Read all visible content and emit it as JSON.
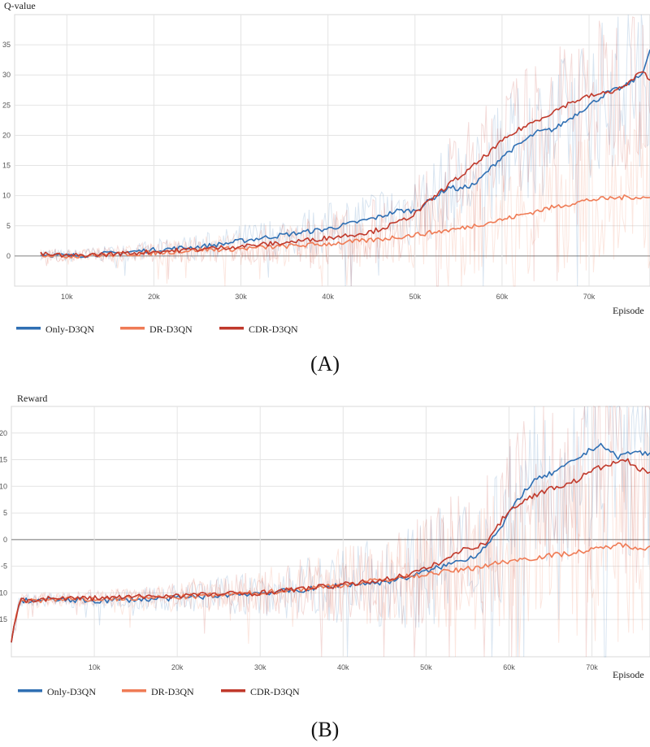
{
  "colors": {
    "only": "#2f6fb3",
    "dr": "#ef7b55",
    "cdr": "#c0392b",
    "grid": "#e4e4e4",
    "zero": "#9a9a9a"
  },
  "chart_data": [
    {
      "type": "line",
      "caption": "(A)",
      "ylabel": "Q-value",
      "xlabel": "Episode",
      "xlim": [
        4000,
        77000
      ],
      "ylim": [
        -5,
        40
      ],
      "yticks": [
        0,
        5,
        10,
        15,
        20,
        25,
        30,
        35
      ],
      "yticklabels": [
        "0",
        "5",
        "10",
        "15",
        "20",
        "25",
        "30",
        "35"
      ],
      "xticks": [
        10000,
        20000,
        30000,
        40000,
        50000,
        60000,
        70000
      ],
      "xticklabels": [
        "10k",
        "20k",
        "30k",
        "40k",
        "50k",
        "60k",
        "70k"
      ],
      "series": [
        {
          "name": "Only-D3QN",
          "key": "only",
          "x": [
            7000,
            10000,
            15000,
            20000,
            25000,
            28000,
            30000,
            35000,
            40000,
            43000,
            46000,
            48000,
            50000,
            52000,
            54000,
            55000,
            57000,
            60000,
            62000,
            64000,
            66000,
            68000,
            70000,
            72000,
            74000,
            76000,
            77000
          ],
          "y": [
            0.3,
            0,
            0.4,
            1,
            1.5,
            2,
            2.5,
            3.5,
            4.5,
            5.5,
            6.5,
            7.5,
            7.5,
            9.5,
            11.5,
            11,
            12,
            16.5,
            18.5,
            20.5,
            21,
            23,
            25,
            27,
            28,
            30,
            34
          ]
        },
        {
          "name": "DR-D3QN",
          "key": "dr",
          "x": [
            7000,
            10000,
            15000,
            20000,
            25000,
            30000,
            35000,
            40000,
            45000,
            50000,
            55000,
            60000,
            65000,
            70000,
            73000,
            75000,
            77000
          ],
          "y": [
            0.3,
            0,
            0.2,
            0.5,
            1,
            1.2,
            1.6,
            2,
            2.6,
            3.5,
            4.5,
            6,
            7.8,
            9.3,
            9.6,
            9.8,
            9.6
          ]
        },
        {
          "name": "CDR-D3QN",
          "key": "cdr",
          "x": [
            7000,
            10000,
            15000,
            20000,
            25000,
            30000,
            35000,
            40000,
            45000,
            48000,
            50000,
            52000,
            54000,
            56000,
            58000,
            60000,
            62000,
            64000,
            66000,
            68000,
            70000,
            72000,
            74000,
            76000,
            77000
          ],
          "y": [
            0.3,
            0,
            0.3,
            0.7,
            1.1,
            1.6,
            2.2,
            3,
            4,
            5.5,
            7,
            9.5,
            12,
            14,
            16.5,
            19,
            21,
            22.5,
            24,
            25.5,
            26.5,
            27,
            28,
            30.5,
            29.5
          ]
        }
      ]
    },
    {
      "type": "line",
      "caption": "(B)",
      "ylabel": "Reward",
      "xlabel": "Episode",
      "xlim": [
        0,
        77000
      ],
      "ylim": [
        -22,
        25
      ],
      "yticks": [
        -15,
        -10,
        -5,
        0,
        5,
        10,
        15,
        20
      ],
      "yticklabels": [
        "-15",
        "-10",
        "-5",
        "0",
        "5",
        "10",
        "15",
        "20"
      ],
      "xticks": [
        10000,
        20000,
        30000,
        40000,
        50000,
        60000,
        70000
      ],
      "xticklabels": [
        "10k",
        "20k",
        "30k",
        "40k",
        "50k",
        "60k",
        "70k"
      ],
      "series": [
        {
          "name": "Only-D3QN",
          "key": "only",
          "x": [
            0,
            1000,
            5000,
            10000,
            20000,
            30000,
            35000,
            40000,
            45000,
            48000,
            50000,
            53000,
            56000,
            59000,
            61000,
            63000,
            66000,
            69000,
            71000,
            73000,
            75000,
            77000
          ],
          "y": [
            -19,
            -11.5,
            -11.3,
            -11.5,
            -11,
            -10,
            -9.5,
            -8.5,
            -8,
            -7,
            -6,
            -4.5,
            -3,
            2,
            7.5,
            11,
            13,
            16,
            18,
            15.5,
            16.5,
            16
          ]
        },
        {
          "name": "DR-D3QN",
          "key": "dr",
          "x": [
            0,
            1000,
            5000,
            10000,
            20000,
            30000,
            40000,
            45000,
            50000,
            55000,
            60000,
            65000,
            70000,
            73000,
            75000,
            77000
          ],
          "y": [
            -19,
            -11.5,
            -11.3,
            -11.2,
            -10.8,
            -10,
            -8.5,
            -7.5,
            -6.5,
            -5.5,
            -4,
            -3,
            -2,
            -1,
            -1.3,
            -1.6
          ]
        },
        {
          "name": "CDR-D3QN",
          "key": "cdr",
          "x": [
            0,
            1000,
            5000,
            10000,
            20000,
            30000,
            40000,
            45000,
            48000,
            50000,
            52000,
            55000,
            57000,
            60000,
            62000,
            64000,
            66000,
            68000,
            70000,
            72000,
            74000,
            76000,
            77000
          ],
          "y": [
            -19,
            -11.5,
            -11,
            -11,
            -10.5,
            -10,
            -8.5,
            -7.5,
            -6.5,
            -5.5,
            -4,
            -1.5,
            -1,
            5.5,
            7.5,
            9,
            10,
            11,
            13,
            14,
            15,
            13,
            12.5
          ]
        }
      ]
    }
  ]
}
